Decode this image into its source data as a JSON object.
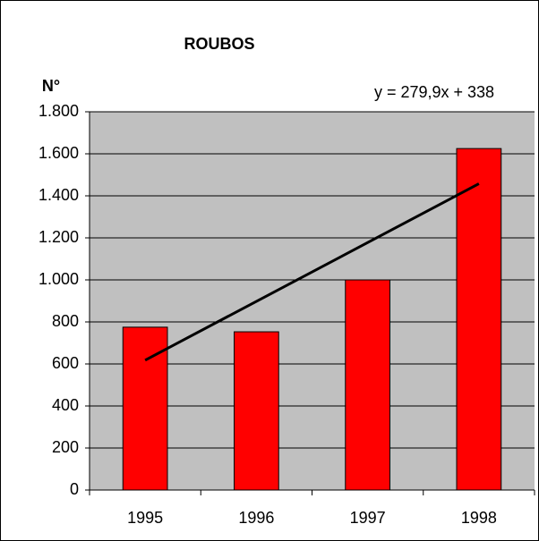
{
  "chart_data": {
    "type": "bar",
    "title": "ROUBOS",
    "y_label": "N°",
    "categories": [
      "1995",
      "1996",
      "1997",
      "1998"
    ],
    "values": [
      775,
      753,
      1000,
      1625
    ],
    "color": "#ff0000",
    "ylim": [
      0,
      1800
    ],
    "yticks": [
      0,
      200,
      400,
      600,
      800,
      {
        "value": 1000,
        "label": "1.000"
      },
      {
        "value": 1200,
        "label": "1.200"
      },
      {
        "value": 1400,
        "label": "1.400"
      },
      {
        "value": 1600,
        "label": "1.600"
      },
      {
        "value": 1800,
        "label": "1.800"
      }
    ],
    "grid": true,
    "trendline": {
      "label": "y = 279,9x + 338",
      "slope": 279.9,
      "intercept": 338,
      "color": "#000000"
    }
  }
}
